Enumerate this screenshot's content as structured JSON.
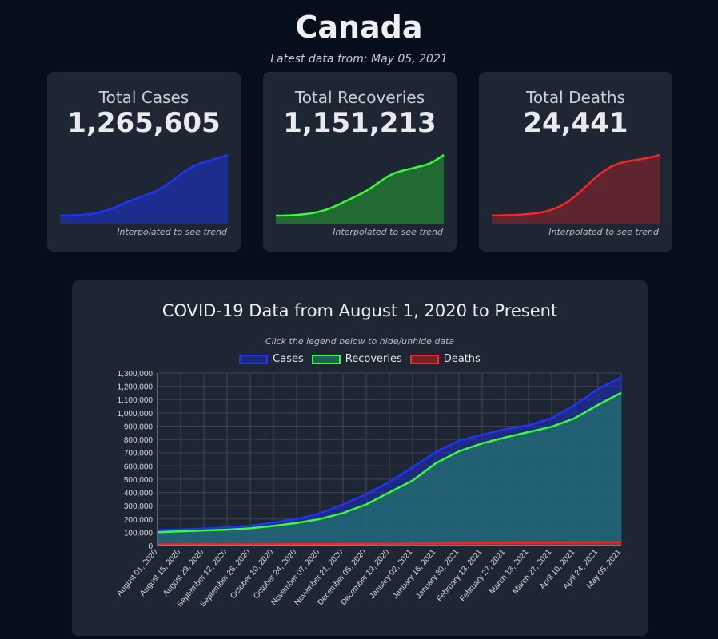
{
  "page": {
    "title": "Canada",
    "subtitle": "Latest data from: May 05, 2021"
  },
  "cards": [
    {
      "label": "Total Cases",
      "value": "1,265,605",
      "note": "Interpolated to see trend",
      "color": "#1f33ff",
      "fill": "#1c2d8e",
      "trend": [
        82000,
        84000,
        88000,
        95000,
        108000,
        128000,
        160000,
        200000,
        250000,
        310000,
        370000,
        420000,
        470000,
        520000,
        580000,
        660000,
        760000,
        860000,
        960000,
        1040000,
        1100000,
        1140000,
        1180000,
        1220000,
        1265605
      ]
    },
    {
      "label": "Total Recoveries",
      "value": "1,151,213",
      "note": "Interpolated to see trend",
      "color": "#33ff33",
      "fill": "#216a33",
      "trend": [
        72000,
        74000,
        78000,
        85000,
        96000,
        112000,
        138000,
        170000,
        215000,
        270000,
        330000,
        390000,
        450000,
        520000,
        600000,
        690000,
        770000,
        830000,
        870000,
        900000,
        930000,
        960000,
        1000000,
        1070000,
        1151213
      ]
    },
    {
      "label": "Total Deaths",
      "value": "24,441",
      "note": "Interpolated to see trend",
      "color": "#ff2222",
      "fill": "#5e2430",
      "trend": [
        8900,
        8950,
        9000,
        9060,
        9150,
        9280,
        9450,
        9700,
        10100,
        10700,
        11500,
        12600,
        14000,
        15600,
        17300,
        18900,
        20300,
        21400,
        22200,
        22700,
        23000,
        23300,
        23600,
        23950,
        24441
      ]
    }
  ],
  "main": {
    "title": "COVID-19 Data from August 1, 2020 to Present",
    "hint": "Click the legend below to hide/unhide data"
  },
  "chart_data": {
    "type": "area",
    "title": "COVID-19 Data from August 1, 2020 to Present",
    "xlabel": "",
    "ylabel": "",
    "ylim": [
      0,
      1300000
    ],
    "grid": true,
    "legend_position": "top",
    "y_ticks": [
      "0",
      "100,000",
      "200,000",
      "300,000",
      "400,000",
      "500,000",
      "600,000",
      "700,000",
      "800,000",
      "900,000",
      "1,000,000",
      "1,100,000",
      "1,200,000",
      "1,300,000"
    ],
    "x": [
      "August 01, 2020",
      "August 15, 2020",
      "August 29, 2020",
      "September 12, 2020",
      "September 26, 2020",
      "October 10, 2020",
      "October 24, 2020",
      "November 07, 2020",
      "November 21, 2020",
      "December 05, 2020",
      "December 19, 2020",
      "January 02, 2021",
      "January 16, 2021",
      "January 30, 2021",
      "February 13, 2021",
      "February 27, 2021",
      "March 13, 2021",
      "March 27, 2021",
      "April 10, 2021",
      "April 24, 2021",
      "May 05, 2021"
    ],
    "series": [
      {
        "name": "Cases",
        "color": "#1f33ff",
        "fill": "rgba(30,45,190,0.55)",
        "values": [
          116000,
          122000,
          128000,
          136000,
          150000,
          172000,
          200000,
          242000,
          310000,
          385000,
          480000,
          590000,
          705000,
          790000,
          835000,
          875000,
          905000,
          960000,
          1060000,
          1180000,
          1265605
        ]
      },
      {
        "name": "Recoveries",
        "color": "#33ff33",
        "fill": "rgba(34,120,110,0.7)",
        "values": [
          101000,
          108000,
          114000,
          120000,
          130000,
          148000,
          170000,
          200000,
          245000,
          310000,
          400000,
          490000,
          620000,
          710000,
          770000,
          815000,
          855000,
          895000,
          960000,
          1060000,
          1151213
        ]
      },
      {
        "name": "Deaths",
        "color": "#ff2222",
        "fill": "rgba(200,30,30,0.5)",
        "values": [
          8950,
          9080,
          9150,
          9230,
          9300,
          9640,
          9960,
          10500,
          11600,
          12600,
          14100,
          15600,
          17500,
          19000,
          20800,
          21800,
          22300,
          22800,
          23200,
          23800,
          24441
        ]
      }
    ]
  }
}
